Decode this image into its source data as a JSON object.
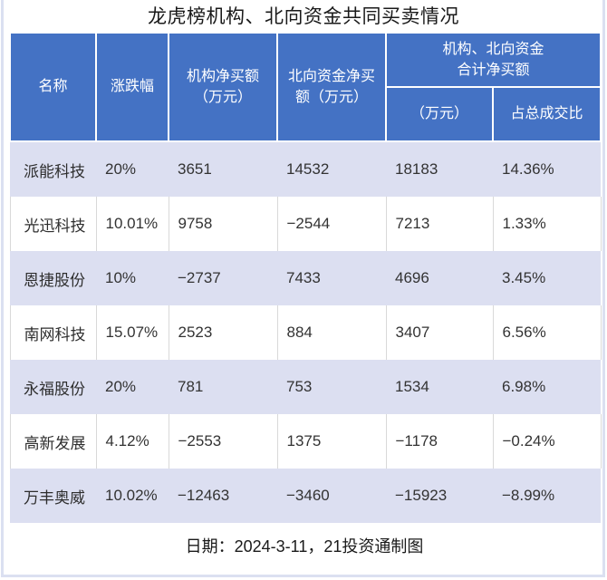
{
  "title": "龙虎榜机构、北向资金共同买卖情况",
  "table": {
    "headers": {
      "name": "名称",
      "change": "涨跌幅",
      "inst": {
        "line1": "机构净买额",
        "line2": "（万元）"
      },
      "north": {
        "line1": "北向资金净买",
        "line2": "额（万元）"
      },
      "combined": {
        "line1": "机构、北向资金",
        "line2": "合计净买额"
      },
      "combined_sub": {
        "wan": "（万元）",
        "ratio": "占总成交比"
      }
    },
    "rows": [
      {
        "name": "派能科技",
        "change": "20%",
        "inst": "3651",
        "north": "14532",
        "total": "18183",
        "ratio": "14.36%"
      },
      {
        "name": "光迅科技",
        "change": "10.01%",
        "inst": "9758",
        "north": "−2544",
        "total": "7213",
        "ratio": "1.33%"
      },
      {
        "name": "恩捷股份",
        "change": "10%",
        "inst": "−2737",
        "north": "7433",
        "total": "4696",
        "ratio": "3.45%"
      },
      {
        "name": "南网科技",
        "change": "15.07%",
        "inst": "2523",
        "north": "884",
        "total": "3407",
        "ratio": "6.56%"
      },
      {
        "name": "永福股份",
        "change": "20%",
        "inst": "781",
        "north": "753",
        "total": "1534",
        "ratio": "6.98%"
      },
      {
        "name": "高新发展",
        "change": "4.12%",
        "inst": "−2553",
        "north": "1375",
        "total": "−1178",
        "ratio": "−0.24%"
      },
      {
        "name": "万丰奥威",
        "change": "10.02%",
        "inst": "−12463",
        "north": "−3460",
        "total": "−15923",
        "ratio": "−8.99%"
      }
    ]
  },
  "footer": "日期：2024-3-11，21投资通制图",
  "colors": {
    "header_bg": "#4472C4",
    "band_row_bg": "#DCDFF1",
    "plain_row_border": "#D9D9D9",
    "frame": "#DBE0F1",
    "header_text": "#FFFFFF",
    "body_text": "#333333"
  },
  "chart_data": {
    "type": "table",
    "title": "龙虎榜机构、北向资金共同买卖情况",
    "columns": [
      "名称",
      "涨跌幅",
      "机构净买额（万元）",
      "北向资金净买额（万元）",
      "机构、北向资金合计净买额（万元）",
      "机构、北向资金合计净买额占总成交比"
    ],
    "rows": [
      [
        "派能科技",
        "20%",
        3651,
        14532,
        18183,
        "14.36%"
      ],
      [
        "光迅科技",
        "10.01%",
        9758,
        -2544,
        7213,
        "1.33%"
      ],
      [
        "恩捷股份",
        "10%",
        -2737,
        7433,
        4696,
        "3.45%"
      ],
      [
        "南网科技",
        "15.07%",
        2523,
        884,
        3407,
        "6.56%"
      ],
      [
        "永福股份",
        "20%",
        781,
        753,
        1534,
        "6.98%"
      ],
      [
        "高新发展",
        "4.12%",
        -2553,
        1375,
        -1178,
        "-0.24%"
      ],
      [
        "万丰奥威",
        "10.02%",
        -12463,
        -3460,
        -15923,
        "-8.99%"
      ]
    ],
    "note": "日期：2024-3-11，21投资通制图",
    "layout": {
      "banded_rows": true,
      "header_color": "#4472C4",
      "band_color": "#DCDFF1"
    }
  }
}
